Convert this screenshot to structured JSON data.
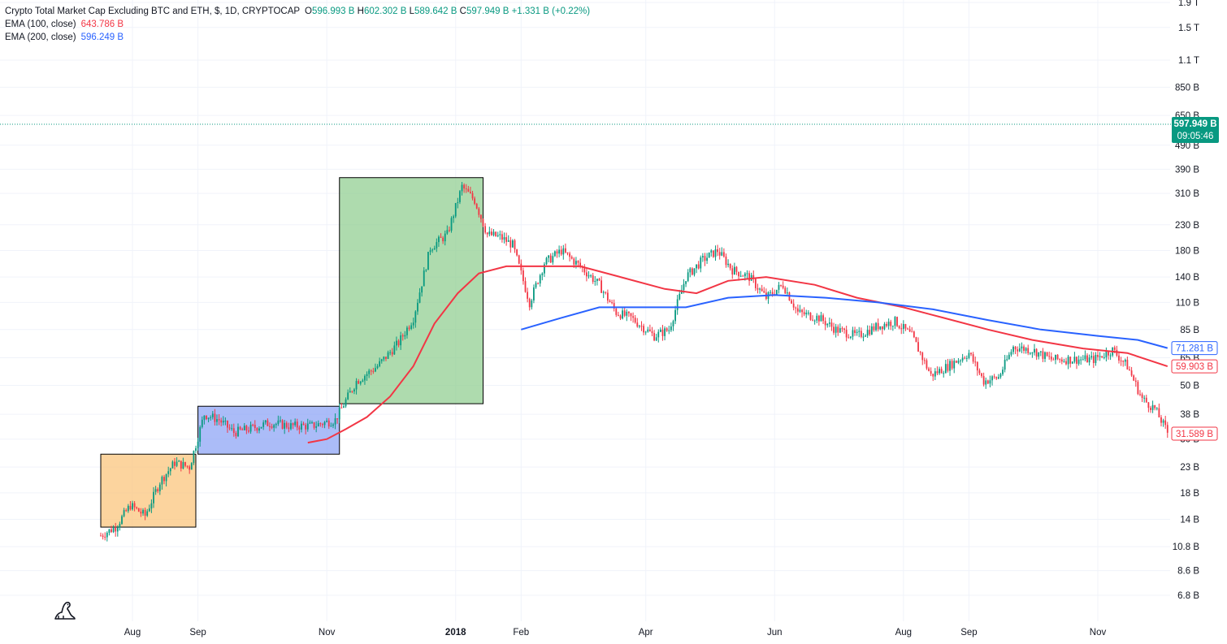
{
  "header": {
    "symbol_title": "Crypto Total Market Cap Excluding BTC and ETH, $, 1D, CRYPTOCAP",
    "open_label": "O",
    "open": "596.993 B",
    "high_label": "H",
    "high": "602.302 B",
    "low_label": "L",
    "low": "589.642 B",
    "close_label": "C",
    "close": "597.949 B",
    "change": "+1.331 B (+0.22%)",
    "ema100_label": "EMA (100, close)",
    "ema100_value": "643.786 B",
    "ema200_label": "EMA (200, close)",
    "ema200_value": "596.249 B"
  },
  "price_tags": {
    "current_price": "597.949 B",
    "countdown": "09:05:46",
    "ema200_tag": "71.281 B",
    "ema100_tag": "59.903 B",
    "last_price_tag": "31.589 B"
  },
  "colors": {
    "up": "#089981",
    "down": "#f23645",
    "ema100": "#f23645",
    "ema200": "#2962ff",
    "box_orange": "#fbc57e",
    "box_blue": "#8fa5f5",
    "box_green": "#93cf93"
  },
  "chart_data": {
    "type": "candlestick",
    "title": "Crypto Total Market Cap Excluding BTC and ETH, $, 1D, CRYPTOCAP",
    "y_scale": "log",
    "y_unit": "B",
    "y_ticks": [
      "6.8 B",
      "8.6 B",
      "10.8 B",
      "14 B",
      "18 B",
      "23 B",
      "30 B",
      "38 B",
      "50 B",
      "65 B",
      "85 B",
      "110 B",
      "140 B",
      "180 B",
      "230 B",
      "310 B",
      "390 B",
      "490 B",
      "650 B",
      "850 B",
      "1.1 T",
      "1.5 T",
      "1.9 T"
    ],
    "x_ticks": [
      "Aug",
      "Sep",
      "Nov",
      "2018",
      "Feb",
      "Apr",
      "Jun",
      "Aug",
      "Sep",
      "Nov"
    ],
    "price_path": [
      {
        "date": "2017-07-17",
        "value": 12
      },
      {
        "date": "2017-07-24",
        "value": 13
      },
      {
        "date": "2017-07-31",
        "value": 16
      },
      {
        "date": "2017-08-07",
        "value": 14.5
      },
      {
        "date": "2017-08-14",
        "value": 20
      },
      {
        "date": "2017-08-21",
        "value": 24
      },
      {
        "date": "2017-08-28",
        "value": 23
      },
      {
        "date": "2017-09-04",
        "value": 38
      },
      {
        "date": "2017-09-11",
        "value": 36
      },
      {
        "date": "2017-09-18",
        "value": 32
      },
      {
        "date": "2017-09-25",
        "value": 33
      },
      {
        "date": "2017-10-05",
        "value": 35
      },
      {
        "date": "2017-10-15",
        "value": 34
      },
      {
        "date": "2017-10-25",
        "value": 34
      },
      {
        "date": "2017-11-05",
        "value": 36
      },
      {
        "date": "2017-11-15",
        "value": 52
      },
      {
        "date": "2017-11-25",
        "value": 60
      },
      {
        "date": "2017-12-05",
        "value": 75
      },
      {
        "date": "2017-12-12",
        "value": 95
      },
      {
        "date": "2017-12-20",
        "value": 185
      },
      {
        "date": "2017-12-28",
        "value": 210
      },
      {
        "date": "2018-01-04",
        "value": 330
      },
      {
        "date": "2018-01-10",
        "value": 290
      },
      {
        "date": "2018-01-16",
        "value": 210
      },
      {
        "date": "2018-01-22",
        "value": 205
      },
      {
        "date": "2018-01-28",
        "value": 190
      },
      {
        "date": "2018-02-05",
        "value": 110
      },
      {
        "date": "2018-02-12",
        "value": 160
      },
      {
        "date": "2018-02-20",
        "value": 180
      },
      {
        "date": "2018-03-01",
        "value": 155
      },
      {
        "date": "2018-03-10",
        "value": 130
      },
      {
        "date": "2018-03-18",
        "value": 100
      },
      {
        "date": "2018-03-25",
        "value": 95
      },
      {
        "date": "2018-04-05",
        "value": 80
      },
      {
        "date": "2018-04-12",
        "value": 85
      },
      {
        "date": "2018-04-20",
        "value": 140
      },
      {
        "date": "2018-04-28",
        "value": 165
      },
      {
        "date": "2018-05-05",
        "value": 180
      },
      {
        "date": "2018-05-12",
        "value": 150
      },
      {
        "date": "2018-05-20",
        "value": 140
      },
      {
        "date": "2018-05-28",
        "value": 115
      },
      {
        "date": "2018-06-05",
        "value": 130
      },
      {
        "date": "2018-06-12",
        "value": 100
      },
      {
        "date": "2018-06-22",
        "value": 95
      },
      {
        "date": "2018-06-30",
        "value": 85
      },
      {
        "date": "2018-07-10",
        "value": 80
      },
      {
        "date": "2018-07-20",
        "value": 88
      },
      {
        "date": "2018-07-28",
        "value": 92
      },
      {
        "date": "2018-08-05",
        "value": 80
      },
      {
        "date": "2018-08-14",
        "value": 55
      },
      {
        "date": "2018-08-22",
        "value": 60
      },
      {
        "date": "2018-09-01",
        "value": 68
      },
      {
        "date": "2018-09-08",
        "value": 52
      },
      {
        "date": "2018-09-15",
        "value": 54
      },
      {
        "date": "2018-09-22",
        "value": 72
      },
      {
        "date": "2018-10-01",
        "value": 70
      },
      {
        "date": "2018-10-10",
        "value": 64
      },
      {
        "date": "2018-10-20",
        "value": 64
      },
      {
        "date": "2018-10-30",
        "value": 64
      },
      {
        "date": "2018-11-08",
        "value": 70
      },
      {
        "date": "2018-11-15",
        "value": 60
      },
      {
        "date": "2018-11-22",
        "value": 44
      },
      {
        "date": "2018-11-28",
        "value": 40
      },
      {
        "date": "2018-12-04",
        "value": 32
      }
    ],
    "ema100": [
      {
        "date": "2017-10-23",
        "value": 29
      },
      {
        "date": "2017-11-01",
        "value": 30
      },
      {
        "date": "2017-11-10",
        "value": 33
      },
      {
        "date": "2017-11-20",
        "value": 37
      },
      {
        "date": "2017-12-01",
        "value": 45
      },
      {
        "date": "2017-12-12",
        "value": 60
      },
      {
        "date": "2017-12-22",
        "value": 90
      },
      {
        "date": "2018-01-02",
        "value": 120
      },
      {
        "date": "2018-01-12",
        "value": 145
      },
      {
        "date": "2018-01-25",
        "value": 155
      },
      {
        "date": "2018-02-10",
        "value": 155
      },
      {
        "date": "2018-03-01",
        "value": 155
      },
      {
        "date": "2018-03-20",
        "value": 140
      },
      {
        "date": "2018-04-10",
        "value": 125
      },
      {
        "date": "2018-04-25",
        "value": 120
      },
      {
        "date": "2018-05-10",
        "value": 135
      },
      {
        "date": "2018-05-28",
        "value": 140
      },
      {
        "date": "2018-06-20",
        "value": 130
      },
      {
        "date": "2018-07-10",
        "value": 115
      },
      {
        "date": "2018-08-01",
        "value": 105
      },
      {
        "date": "2018-08-20",
        "value": 95
      },
      {
        "date": "2018-09-10",
        "value": 85
      },
      {
        "date": "2018-10-01",
        "value": 77
      },
      {
        "date": "2018-10-25",
        "value": 71
      },
      {
        "date": "2018-11-15",
        "value": 68
      },
      {
        "date": "2018-12-04",
        "value": 59.903
      }
    ],
    "ema200": [
      {
        "date": "2018-02-01",
        "value": 85
      },
      {
        "date": "2018-02-20",
        "value": 95
      },
      {
        "date": "2018-03-10",
        "value": 105
      },
      {
        "date": "2018-03-30",
        "value": 105
      },
      {
        "date": "2018-04-20",
        "value": 105
      },
      {
        "date": "2018-05-10",
        "value": 115
      },
      {
        "date": "2018-06-01",
        "value": 118
      },
      {
        "date": "2018-06-25",
        "value": 115
      },
      {
        "date": "2018-07-20",
        "value": 110
      },
      {
        "date": "2018-08-15",
        "value": 103
      },
      {
        "date": "2018-09-10",
        "value": 93
      },
      {
        "date": "2018-10-05",
        "value": 85
      },
      {
        "date": "2018-11-01",
        "value": 80
      },
      {
        "date": "2018-11-20",
        "value": 77
      },
      {
        "date": "2018-12-04",
        "value": 71.281
      }
    ],
    "annotation_boxes": [
      {
        "start": "2017-07-17",
        "end": "2017-08-31",
        "low": 13,
        "high": 26,
        "color": "orange"
      },
      {
        "start": "2017-09-01",
        "end": "2017-11-07",
        "low": 26,
        "high": 41,
        "color": "blue"
      },
      {
        "start": "2017-11-07",
        "end": "2018-01-14",
        "low": 42,
        "high": 360,
        "color": "green"
      }
    ],
    "current_price_line": 597.949,
    "grid": true
  }
}
